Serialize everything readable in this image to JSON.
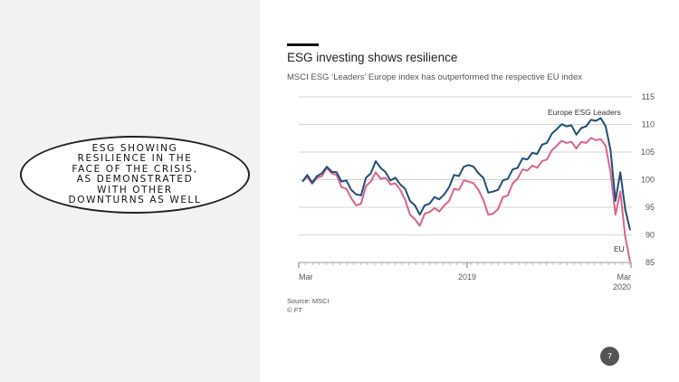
{
  "callout": {
    "text": "ESG SHOWING RESILIENCE IN THE FACE OF THE CRISIS, AS DEMONSTRATED WITH OTHER DOWNTURNS AS WELL"
  },
  "page_number": "7",
  "colors": {
    "leaders": "#1f4e79",
    "eu": "#d9638e",
    "grid": "#d4d4d4",
    "left_panel": "#f2f2f2"
  },
  "chart_data": {
    "type": "line",
    "title": "ESG investing shows resilience",
    "subtitle": "MSCI ESG ‘Leaders’ Europe index has outperformed the respective EU index",
    "source": "Source: MSCI",
    "credit": "© FT",
    "ylim": [
      85,
      115
    ],
    "yticks": [
      85,
      90,
      95,
      100,
      105,
      110,
      115
    ],
    "x_tick_labels": [
      "Mar",
      "2019",
      "Mar\n2020"
    ],
    "grid": true,
    "x_range": [
      "Mar 2018",
      "Mar 2020"
    ],
    "series": [
      {
        "name": "Europe ESG Leaders",
        "values": [
          100.0,
          100.5,
          99.8,
          100.3,
          101.5,
          102.0,
          101.8,
          101.0,
          100.0,
          99.5,
          98.5,
          97.0,
          97.5,
          100.0,
          101.5,
          103.0,
          102.5,
          101.0,
          100.2,
          100.0,
          99.5,
          98.0,
          96.5,
          95.0,
          94.0,
          95.0,
          96.0,
          96.5,
          96.8,
          97.0,
          99.0,
          100.5,
          101.0,
          102.0,
          103.0,
          102.0,
          101.5,
          100.0,
          98.0,
          97.5,
          98.5,
          99.5,
          100.5,
          101.5,
          102.5,
          103.5,
          104.0,
          104.5,
          105.0,
          106.0,
          107.0,
          108.0,
          109.5,
          109.7,
          110.0,
          109.5,
          108.5,
          109.0,
          110.0,
          110.5,
          111.0,
          110.8,
          110.0,
          105.0,
          96.5,
          101.0,
          95.0,
          90.5
        ]
      },
      {
        "name": "EU",
        "values": [
          100.0,
          100.2,
          99.6,
          100.0,
          101.0,
          101.8,
          101.5,
          100.5,
          99.0,
          98.0,
          97.0,
          95.0,
          96.0,
          98.5,
          100.0,
          101.0,
          100.5,
          100.0,
          99.5,
          99.0,
          98.5,
          96.0,
          94.0,
          92.5,
          92.0,
          93.5,
          94.5,
          94.5,
          94.6,
          95.0,
          96.5,
          98.0,
          98.5,
          99.5,
          100.0,
          99.0,
          98.5,
          96.0,
          94.0,
          93.5,
          95.0,
          96.5,
          97.5,
          99.0,
          100.5,
          101.5,
          102.0,
          102.2,
          102.5,
          103.0,
          104.0,
          105.0,
          106.5,
          106.7,
          107.0,
          106.5,
          106.0,
          106.5,
          107.0,
          107.2,
          107.5,
          107.0,
          106.5,
          101.0,
          94.0,
          97.5,
          90.0,
          84.8
        ]
      }
    ],
    "annotations": [
      "Europe ESG Leaders",
      "EU"
    ]
  }
}
